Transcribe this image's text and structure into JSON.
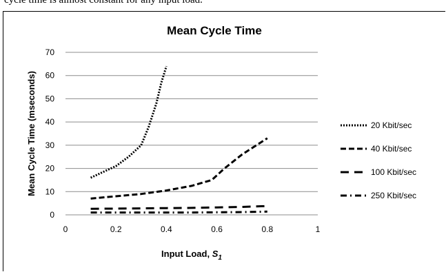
{
  "page": {
    "top_text": "cycle time is almost constant for any input load."
  },
  "chart_data": {
    "type": "line",
    "title": "Mean Cycle Time",
    "xlabel": "Input Load, ",
    "xlabel_symbol": "S",
    "xlabel_subscript": "1",
    "ylabel": "Mean Cycle Time (mseconds)",
    "xlim": [
      0,
      1
    ],
    "ylim": [
      0,
      70
    ],
    "xticks": [
      "0",
      "0.2",
      "0.4",
      "0.6",
      "0.8",
      "1"
    ],
    "xtick_values": [
      0,
      0.2,
      0.4,
      0.6,
      0.8,
      1
    ],
    "yticks": [
      "0",
      "10",
      "20",
      "30",
      "40",
      "50",
      "60",
      "70"
    ],
    "ytick_values": [
      0,
      10,
      20,
      30,
      40,
      50,
      60,
      70
    ],
    "grid": "horizontal",
    "legend_position": "right",
    "series": [
      {
        "name": "20 Kbit/sec",
        "style": "dotted",
        "color": "#000000",
        "x": [
          0.1,
          0.15,
          0.2,
          0.25,
          0.3,
          0.33,
          0.36,
          0.38,
          0.4
        ],
        "y": [
          16,
          18.5,
          21,
          25,
          30,
          38,
          48,
          57,
          64
        ]
      },
      {
        "name": "40 Kbit/sec",
        "style": "dashed",
        "color": "#000000",
        "x": [
          0.1,
          0.2,
          0.3,
          0.4,
          0.5,
          0.58,
          0.63,
          0.7,
          0.8
        ],
        "y": [
          7,
          8,
          9,
          10.5,
          12.5,
          15,
          20,
          26,
          33
        ]
      },
      {
        "name": "100 Kbit/sec",
        "style": "long-dash",
        "color": "#000000",
        "x": [
          0.1,
          0.2,
          0.3,
          0.4,
          0.5,
          0.6,
          0.7,
          0.8
        ],
        "y": [
          2.6,
          2.7,
          2.8,
          2.9,
          3.0,
          3.2,
          3.4,
          3.8
        ]
      },
      {
        "name": "250 Kbit/sec",
        "style": "dash-dot",
        "color": "#000000",
        "x": [
          0.1,
          0.2,
          0.3,
          0.4,
          0.5,
          0.6,
          0.7,
          0.8
        ],
        "y": [
          1,
          1,
          1,
          1,
          1,
          1.1,
          1.2,
          1.4
        ]
      }
    ]
  }
}
